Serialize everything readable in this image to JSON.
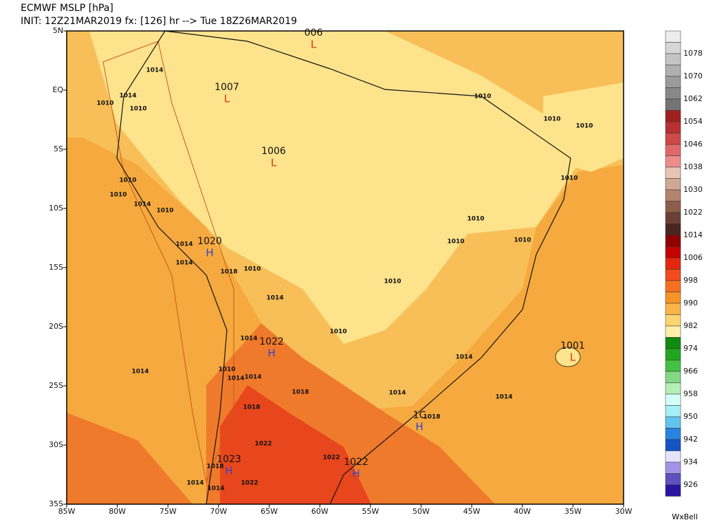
{
  "header": {
    "title": "ECMWF MSLP [hPa]",
    "subtitle": "INIT: 12Z21MAR2019 fx: [126] hr --> Tue 18Z26MAR2019"
  },
  "map": {
    "lat_labels": [
      "5N",
      "EQ",
      "5S",
      "10S",
      "15S",
      "20S",
      "25S",
      "30S",
      "35S"
    ],
    "lon_labels": [
      "85W",
      "80W",
      "75W",
      "70W",
      "65W",
      "60W",
      "55W",
      "50W",
      "45W",
      "40W",
      "35W",
      "30W"
    ],
    "centers": [
      {
        "letter": "L",
        "value": "006"
      },
      {
        "letter": "L",
        "value": "1007"
      },
      {
        "letter": "L",
        "value": "1006"
      },
      {
        "letter": "H",
        "value": "1020"
      },
      {
        "letter": "H",
        "value": "1022"
      },
      {
        "letter": "H",
        "value": "1C"
      },
      {
        "letter": "H",
        "value": "1023"
      },
      {
        "letter": "H",
        "value": "1022"
      },
      {
        "letter": "L",
        "value": "1001"
      }
    ],
    "contour_labels": [
      "1014",
      "1010",
      "1014",
      "1010",
      "1010",
      "1010",
      "1014",
      "1010",
      "1014",
      "1014",
      "1018",
      "1010",
      "1014",
      "1014",
      "1010",
      "1014",
      "1014",
      "1018",
      "1022",
      "1018",
      "1014",
      "1014",
      "1022",
      "1022",
      "1018",
      "1014",
      "1010",
      "1010",
      "1010",
      "1010",
      "1010",
      "1010",
      "1010",
      "1010",
      "1010",
      "1014",
      "1014",
      "1014",
      "1018"
    ]
  },
  "colorbar": {
    "labels": [
      "1078",
      "1070",
      "1062",
      "1054",
      "1046",
      "1038",
      "1030",
      "1022",
      "1014",
      "1006",
      "998",
      "990",
      "982",
      "974",
      "966",
      "958",
      "950",
      "942",
      "934",
      "926"
    ],
    "colors": [
      "#ececec",
      "#d6d6d6",
      "#c4c4c4",
      "#b0b0b0",
      "#9c9c9c",
      "#888888",
      "#747474",
      "#a02020",
      "#b83030",
      "#d04848",
      "#e06868",
      "#ee8c8c",
      "#e8c4b4",
      "#d0a894",
      "#b4846c",
      "#8e5e4a",
      "#6c4034",
      "#4c2420",
      "#900000",
      "#c40000",
      "#e42810",
      "#f24c1c",
      "#f47020",
      "#f69428",
      "#f8b448",
      "#fcd472",
      "#fff0a8",
      "#108a10",
      "#22a622",
      "#44c044",
      "#84d884",
      "#b4f0b4",
      "#d4fff8",
      "#a4f0f8",
      "#64c4f0",
      "#2884e0",
      "#1454c4",
      "#e4e4ff",
      "#a494e8",
      "#6050c0",
      "#2a14a0"
    ]
  },
  "credit": "WxBell"
}
